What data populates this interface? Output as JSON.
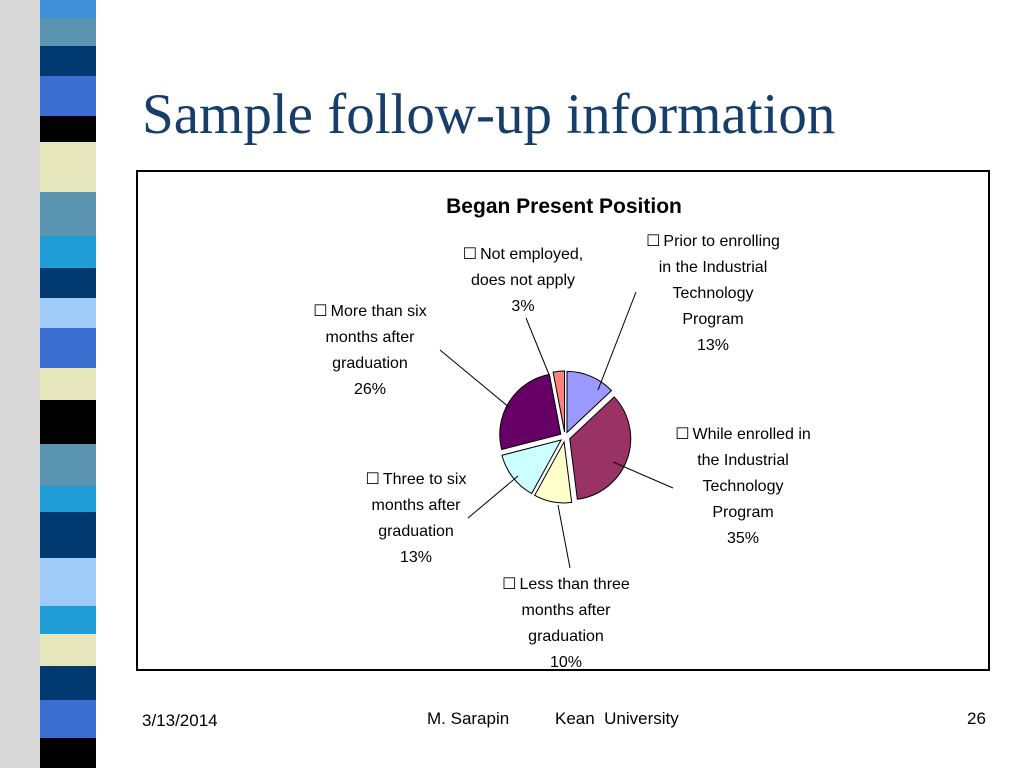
{
  "slide": {
    "title": "Sample follow-up information"
  },
  "footer": {
    "date": "3/13/2014",
    "author": "M. Sarapin",
    "institution": "Kean  University",
    "page_number": "26"
  },
  "chart_data": {
    "type": "pie",
    "title": "Began Present Position",
    "legend_marker": "☐",
    "slices": [
      {
        "label": "Prior to enrolling in the Industrial Technology Program",
        "lines": [
          "Prior to enrolling",
          "in the Industrial",
          "Technology",
          "Program"
        ],
        "value": 13,
        "value_label": "13%",
        "color": "#9999ff"
      },
      {
        "label": "While enrolled in the Industrial Technology Program",
        "lines": [
          "While enrolled in",
          "the Industrial",
          "Technology",
          "Program"
        ],
        "value": 35,
        "value_label": "35%",
        "color": "#993366"
      },
      {
        "label": "Less than three months after graduation",
        "lines": [
          "Less than three",
          "months after",
          "graduation"
        ],
        "value": 10,
        "value_label": "10%",
        "color": "#ffffcc"
      },
      {
        "label": "Three to six months after graduation",
        "lines": [
          "Three to six",
          "months after",
          "graduation"
        ],
        "value": 13,
        "value_label": "13%",
        "color": "#ccffff"
      },
      {
        "label": "More than six months after graduation",
        "lines": [
          "More than six",
          "months after",
          "graduation"
        ],
        "value": 26,
        "value_label": "26%",
        "color": "#660066"
      },
      {
        "label": "Not employed, does not apply",
        "lines": [
          "Not employed,",
          "does not apply"
        ],
        "value": 3,
        "value_label": "3%",
        "color": "#ff8080"
      }
    ]
  }
}
